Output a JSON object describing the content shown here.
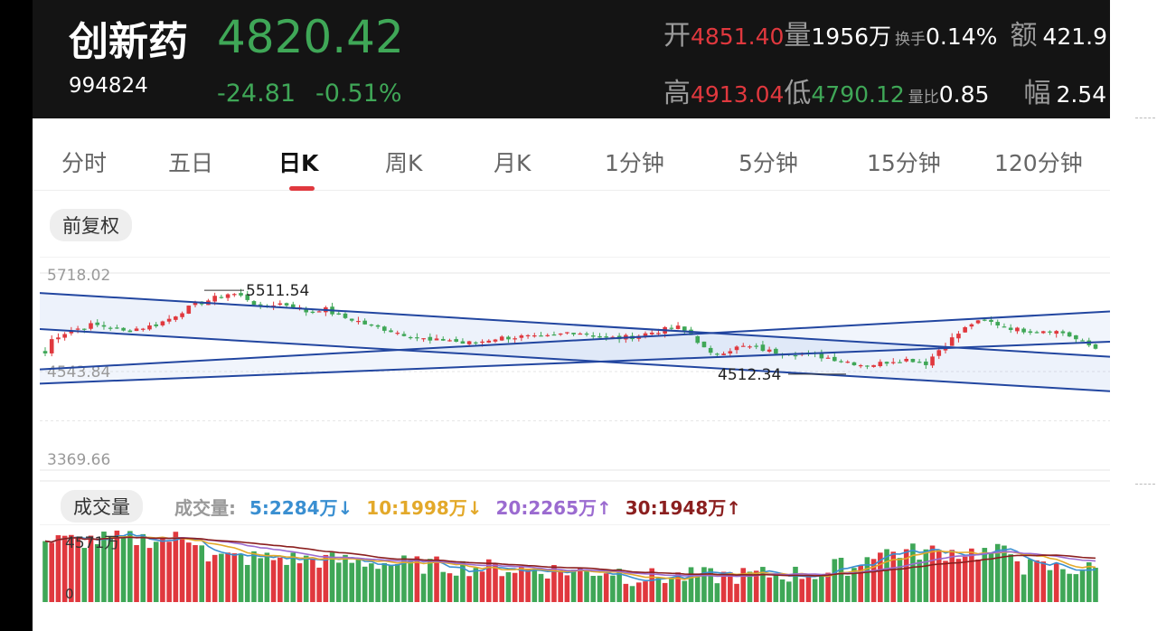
{
  "header": {
    "name": "创新药",
    "code": "994824",
    "price": "4820.42",
    "change": "-24.81",
    "change_pct": "-0.51%",
    "stats": {
      "open_label": "开",
      "open": "4851.40",
      "volume_label": "量",
      "volume": "1956万",
      "turnover_label": "换手",
      "turnover": "0.14%",
      "amount_label": "额",
      "amount": "421.9",
      "high_label": "高",
      "high": "4913.04",
      "low_label": "低",
      "low": "4790.12",
      "vol_ratio_label": "量比",
      "vol_ratio": "0.85",
      "amplitude_label": "幅",
      "amplitude": "2.54"
    }
  },
  "tabs": [
    {
      "label": "分时"
    },
    {
      "label": "五日"
    },
    {
      "label": "日K"
    },
    {
      "label": "周K"
    },
    {
      "label": "月K"
    },
    {
      "label": "1分钟"
    },
    {
      "label": "5分钟"
    },
    {
      "label": "15分钟"
    },
    {
      "label": "120分钟"
    }
  ],
  "active_tab": 2,
  "adjust_label": "前复权",
  "volume_panel": {
    "pill": "成交量",
    "legend_prefix": "成交量:",
    "ma5": "5:2284万↓",
    "ma10": "10:1998万↓",
    "ma20": "20:2265万↑",
    "ma30": "30:1948万↑",
    "axis_top": "4571万",
    "axis_zero": "0"
  },
  "colors": {
    "up": "#e0383e",
    "down": "#3fa757",
    "ma5": "#3a8fd1",
    "ma10": "#e3a92a",
    "ma20": "#9b6bd0",
    "ma30": "#8b1f1f",
    "trend": "#2246a0"
  },
  "chart_data": {
    "type": "candlestick",
    "y_axis_labels": [
      "5718.02",
      "4543.84",
      "3369.66"
    ],
    "ylim": [
      3369.66,
      5718.02
    ],
    "annotations": [
      {
        "text": "5511.54",
        "value": 5511.54
      },
      {
        "text": "4512.34",
        "value": 4512.34
      }
    ],
    "close_path": [
      4880,
      4990,
      5050,
      5100,
      5080,
      5020,
      5060,
      5090,
      5170,
      5280,
      5360,
      5420,
      5480,
      5420,
      5300,
      5360,
      5330,
      5250,
      5300,
      5200,
      5160,
      5090,
      5050,
      5000,
      4960,
      4900,
      4930,
      4880,
      4890,
      4940,
      4950,
      4960,
      4940,
      4970,
      5020,
      5000,
      4950,
      4940,
      4960,
      5000,
      5040,
      5070,
      4960,
      4740,
      4790,
      4840,
      4830,
      4780,
      4770,
      4760,
      4730,
      4700,
      4660,
      4620,
      4640,
      4680,
      4690,
      4640,
      4830,
      4980,
      5120,
      5140,
      5090,
      5040,
      5030,
      5040,
      5000,
      4900,
      4820
    ],
    "trend_lines": [
      {
        "start": 5480,
        "end": 4720,
        "label": "channel-upper"
      },
      {
        "start": 5050,
        "end": 4310,
        "label": "channel-lower"
      },
      {
        "start": 4570,
        "end": 5260,
        "label": "rising-upper"
      },
      {
        "start": 4400,
        "end": 4900,
        "label": "rising-lower"
      }
    ]
  }
}
